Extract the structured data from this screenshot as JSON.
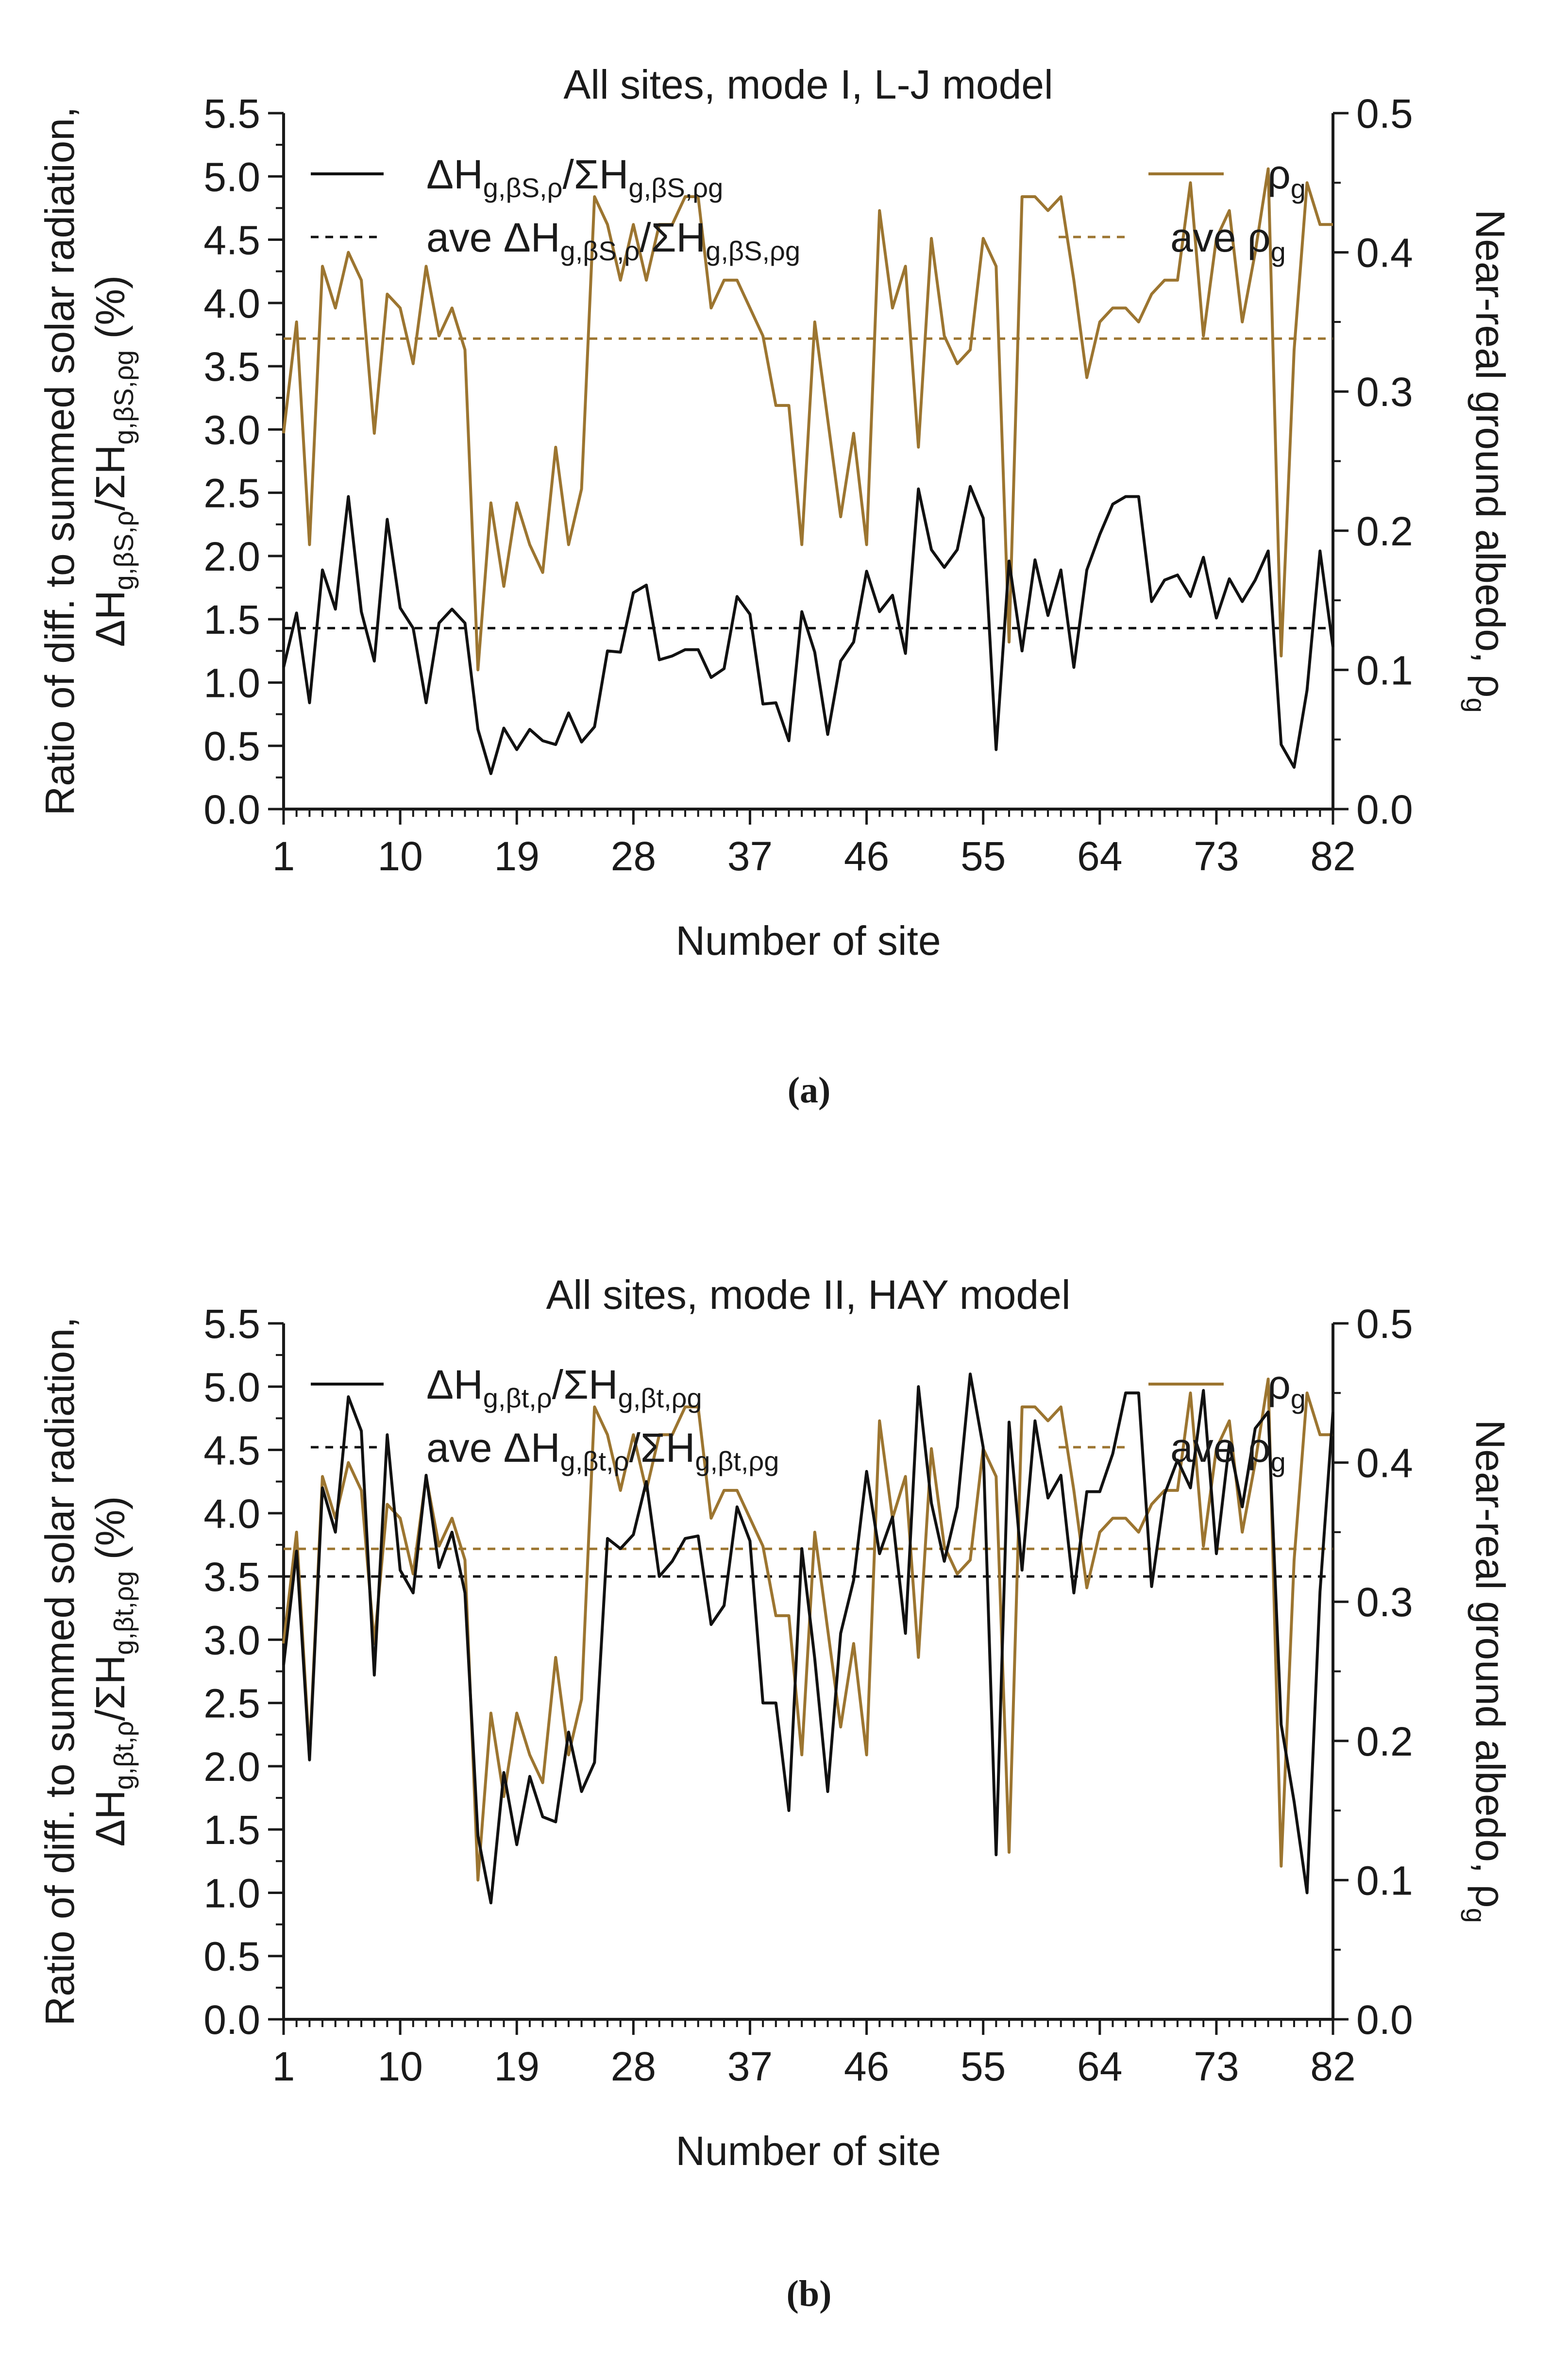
{
  "colors": {
    "black_series": "#111111",
    "gold_series": "#9c7530",
    "axis": "#1a1a1a"
  },
  "chart_data": [
    {
      "type": "line",
      "panel_label": "(a)",
      "title": "All sites, mode I, L-J model",
      "xlabel": "Number of site",
      "ylabel_left_line1": "Ratio of diff. to summed solar radiation,",
      "ylabel_left_line2": {
        "a": "ΔH",
        "a_sub": "g,βS,ρ",
        "slash": "/ΣH",
        "b_sub": "g,βS,ρg",
        "tail": " (%)"
      },
      "ylabel_right": {
        "main": "Near-real ground albedo, ρ",
        "sub": "g"
      },
      "xlim": [
        1,
        82
      ],
      "ylim_left": [
        0,
        5.5
      ],
      "ylim_right": [
        0,
        0.5
      ],
      "xticks": [
        "1",
        "10",
        "19",
        "28",
        "37",
        "46",
        "55",
        "64",
        "73",
        "82"
      ],
      "yticks_left": [
        "0.0",
        "0.5",
        "1.0",
        "1.5",
        "2.0",
        "2.5",
        "3.0",
        "3.5",
        "4.0",
        "4.5",
        "5.0",
        "5.5"
      ],
      "yticks_right": [
        "0.0",
        "0.1",
        "0.2",
        "0.3",
        "0.4",
        "0.5"
      ],
      "legend": {
        "series1": {
          "main": "ΔH",
          "sub1": "g,βS,ρ",
          "mid": "/ΣH",
          "sub2": "g,βS,ρg"
        },
        "avg1": {
          "main": "ave ΔH",
          "sub1": "g,βS,ρ",
          "mid": "/ΣH",
          "sub2": "g,βS,ρg"
        },
        "series2": {
          "main": "ρ",
          "sub": "g"
        },
        "avg2": {
          "main": "ave ρ",
          "sub": "g"
        }
      },
      "series": [
        {
          "name": "ΔHg,βS,ρ/ΣHg,βS,ρg",
          "axis": "left",
          "x": [
            1,
            2,
            3,
            4,
            5,
            6,
            7,
            8,
            9,
            10,
            11,
            12,
            13,
            14,
            15,
            16,
            17,
            18,
            19,
            20,
            21,
            22,
            23,
            24,
            25,
            26,
            27,
            28,
            29,
            30,
            31,
            32,
            33,
            34,
            35,
            36,
            37,
            38,
            39,
            40,
            41,
            42,
            43,
            44,
            45,
            46,
            47,
            48,
            49,
            50,
            51,
            52,
            53,
            54,
            55,
            56,
            57,
            58,
            59,
            60,
            61,
            62,
            63,
            64,
            65,
            66,
            67,
            68,
            69,
            70,
            71,
            72,
            73,
            74,
            75,
            76,
            77,
            78,
            79,
            80,
            81,
            82
          ],
          "values": [
            1.12,
            1.55,
            0.84,
            1.89,
            1.58,
            2.47,
            1.56,
            1.17,
            2.29,
            1.59,
            1.43,
            0.84,
            1.47,
            1.58,
            1.47,
            0.63,
            0.28,
            0.64,
            0.47,
            0.63,
            0.54,
            0.51,
            0.76,
            0.53,
            0.65,
            1.25,
            1.24,
            1.71,
            1.77,
            1.18,
            1.21,
            1.26,
            1.26,
            1.04,
            1.11,
            1.68,
            1.54,
            0.83,
            0.84,
            0.54,
            1.56,
            1.24,
            0.59,
            1.17,
            1.32,
            1.88,
            1.56,
            1.69,
            1.23,
            2.53,
            2.05,
            1.91,
            2.05,
            2.55,
            2.3,
            0.47,
            1.96,
            1.25,
            1.97,
            1.53,
            1.89,
            1.12,
            1.89,
            2.17,
            2.41,
            2.47,
            2.47,
            1.64,
            1.81,
            1.85,
            1.68,
            1.99,
            1.51,
            1.82,
            1.64,
            1.81,
            2.04,
            0.51,
            0.33,
            0.94,
            2.04,
            1.28
          ]
        },
        {
          "name": "ave ΔHg,βS,ρ/ΣHg,βS,ρg",
          "axis": "left",
          "style": "dashed",
          "values": [
            1.43
          ]
        },
        {
          "name": "ρg",
          "axis": "right",
          "x": [
            1,
            2,
            3,
            4,
            5,
            6,
            7,
            8,
            9,
            10,
            11,
            12,
            13,
            14,
            15,
            16,
            17,
            18,
            19,
            20,
            21,
            22,
            23,
            24,
            25,
            26,
            27,
            28,
            29,
            30,
            31,
            32,
            33,
            34,
            35,
            36,
            37,
            38,
            39,
            40,
            41,
            42,
            43,
            44,
            45,
            46,
            47,
            48,
            49,
            50,
            51,
            52,
            53,
            54,
            55,
            56,
            57,
            58,
            59,
            60,
            61,
            62,
            63,
            64,
            65,
            66,
            67,
            68,
            69,
            70,
            71,
            72,
            73,
            74,
            75,
            76,
            77,
            78,
            79,
            80,
            81,
            82
          ],
          "values": [
            0.27,
            0.35,
            0.19,
            0.39,
            0.36,
            0.4,
            0.38,
            0.27,
            0.37,
            0.36,
            0.32,
            0.39,
            0.34,
            0.36,
            0.33,
            0.1,
            0.22,
            0.16,
            0.22,
            0.19,
            0.17,
            0.26,
            0.19,
            0.23,
            0.44,
            0.42,
            0.38,
            0.42,
            0.38,
            0.42,
            0.42,
            0.44,
            0.44,
            0.36,
            0.38,
            0.38,
            0.36,
            0.34,
            0.29,
            0.29,
            0.19,
            0.35,
            0.28,
            0.21,
            0.27,
            0.19,
            0.43,
            0.36,
            0.39,
            0.26,
            0.41,
            0.34,
            0.32,
            0.33,
            0.41,
            0.39,
            0.12,
            0.44,
            0.44,
            0.43,
            0.44,
            0.38,
            0.31,
            0.35,
            0.36,
            0.36,
            0.35,
            0.37,
            0.38,
            0.38,
            0.45,
            0.34,
            0.41,
            0.43,
            0.35,
            0.4,
            0.46,
            0.11,
            0.33,
            0.45,
            0.42,
            0.42
          ]
        },
        {
          "name": "ave ρg",
          "axis": "right",
          "style": "dashed",
          "values": [
            0.338
          ]
        }
      ]
    },
    {
      "type": "line",
      "panel_label": "(b)",
      "title": "All sites, mode II, HAY model",
      "xlabel": "Number of site",
      "ylabel_left_line1": "Ratio of diff. to summed solar radiation,",
      "ylabel_left_line2": {
        "a": "ΔH",
        "a_sub": "g,βt,ρ",
        "slash": "/ΣH",
        "b_sub": "g,βt,ρg",
        "tail": " (%)"
      },
      "ylabel_right": {
        "main": "Near-real ground albedo, ρ",
        "sub": "g"
      },
      "xlim": [
        1,
        82
      ],
      "ylim_left": [
        0,
        5.5
      ],
      "ylim_right": [
        0,
        0.5
      ],
      "xticks": [
        "1",
        "10",
        "19",
        "28",
        "37",
        "46",
        "55",
        "64",
        "73",
        "82"
      ],
      "yticks_left": [
        "0.0",
        "0.5",
        "1.0",
        "1.5",
        "2.0",
        "2.5",
        "3.0",
        "3.5",
        "4.0",
        "4.5",
        "5.0",
        "5.5"
      ],
      "yticks_right": [
        "0.0",
        "0.1",
        "0.2",
        "0.3",
        "0.4",
        "0.5"
      ],
      "legend": {
        "series1": {
          "main": "ΔH",
          "sub1": "g,βt,ρ",
          "mid": "/ΣH",
          "sub2": "g,βt,ρg"
        },
        "avg1": {
          "main": "ave ΔH",
          "sub1": "g,βt,ρ",
          "mid": "/ΣH",
          "sub2": "g,βt,ρg"
        },
        "series2": {
          "main": "ρ",
          "sub": "g"
        },
        "avg2": {
          "main": "ave ρ",
          "sub": "g"
        }
      },
      "series": [
        {
          "name": "ΔHg,βt,ρ/ΣHg,βt,ρg",
          "axis": "left",
          "x": [
            1,
            2,
            3,
            4,
            5,
            6,
            7,
            8,
            9,
            10,
            11,
            12,
            13,
            14,
            15,
            16,
            17,
            18,
            19,
            20,
            21,
            22,
            23,
            24,
            25,
            26,
            27,
            28,
            29,
            30,
            31,
            32,
            33,
            34,
            35,
            36,
            37,
            38,
            39,
            40,
            41,
            42,
            43,
            44,
            45,
            46,
            47,
            48,
            49,
            50,
            51,
            52,
            53,
            54,
            55,
            56,
            57,
            58,
            59,
            60,
            61,
            62,
            63,
            64,
            65,
            66,
            67,
            68,
            69,
            70,
            71,
            72,
            73,
            74,
            75,
            76,
            77,
            78,
            79,
            80,
            81,
            82
          ],
          "values": [
            2.8,
            3.7,
            2.05,
            4.2,
            3.85,
            4.92,
            4.65,
            2.72,
            4.62,
            3.55,
            3.37,
            4.3,
            3.57,
            3.85,
            3.37,
            1.45,
            0.92,
            1.95,
            1.38,
            1.92,
            1.6,
            1.56,
            2.27,
            1.8,
            2.03,
            3.8,
            3.72,
            3.83,
            4.25,
            3.5,
            3.62,
            3.8,
            3.82,
            3.12,
            3.27,
            4.05,
            3.78,
            2.5,
            2.5,
            1.65,
            3.72,
            2.85,
            1.8,
            3.05,
            3.47,
            4.33,
            3.68,
            3.97,
            3.05,
            5.0,
            4.08,
            3.62,
            4.05,
            5.1,
            4.52,
            1.3,
            4.72,
            3.55,
            4.73,
            4.12,
            4.3,
            3.37,
            4.17,
            4.17,
            4.47,
            4.95,
            4.95,
            3.42,
            4.15,
            4.42,
            4.2,
            4.97,
            3.68,
            4.55,
            4.05,
            4.67,
            4.8,
            2.33,
            1.72,
            1.0,
            3.38,
            4.8
          ]
        },
        {
          "name": "ave ΔHg,βt,ρ/ΣHg,βt,ρg",
          "axis": "left",
          "style": "dashed",
          "values": [
            3.5
          ]
        },
        {
          "name": "ρg",
          "axis": "right",
          "x": [
            1,
            2,
            3,
            4,
            5,
            6,
            7,
            8,
            9,
            10,
            11,
            12,
            13,
            14,
            15,
            16,
            17,
            18,
            19,
            20,
            21,
            22,
            23,
            24,
            25,
            26,
            27,
            28,
            29,
            30,
            31,
            32,
            33,
            34,
            35,
            36,
            37,
            38,
            39,
            40,
            41,
            42,
            43,
            44,
            45,
            46,
            47,
            48,
            49,
            50,
            51,
            52,
            53,
            54,
            55,
            56,
            57,
            58,
            59,
            60,
            61,
            62,
            63,
            64,
            65,
            66,
            67,
            68,
            69,
            70,
            71,
            72,
            73,
            74,
            75,
            76,
            77,
            78,
            79,
            80,
            81,
            82
          ],
          "values": [
            0.27,
            0.35,
            0.19,
            0.39,
            0.36,
            0.4,
            0.38,
            0.27,
            0.37,
            0.36,
            0.32,
            0.39,
            0.34,
            0.36,
            0.33,
            0.1,
            0.22,
            0.16,
            0.22,
            0.19,
            0.17,
            0.26,
            0.19,
            0.23,
            0.44,
            0.42,
            0.38,
            0.42,
            0.38,
            0.42,
            0.42,
            0.44,
            0.44,
            0.36,
            0.38,
            0.38,
            0.36,
            0.34,
            0.29,
            0.29,
            0.19,
            0.35,
            0.28,
            0.21,
            0.27,
            0.19,
            0.43,
            0.36,
            0.39,
            0.26,
            0.41,
            0.34,
            0.32,
            0.33,
            0.41,
            0.39,
            0.12,
            0.44,
            0.44,
            0.43,
            0.44,
            0.38,
            0.31,
            0.35,
            0.36,
            0.36,
            0.35,
            0.37,
            0.38,
            0.38,
            0.45,
            0.34,
            0.41,
            0.43,
            0.35,
            0.4,
            0.46,
            0.11,
            0.33,
            0.45,
            0.42,
            0.42
          ]
        },
        {
          "name": "ave ρg",
          "axis": "right",
          "style": "dashed",
          "values": [
            0.338
          ]
        }
      ]
    }
  ]
}
